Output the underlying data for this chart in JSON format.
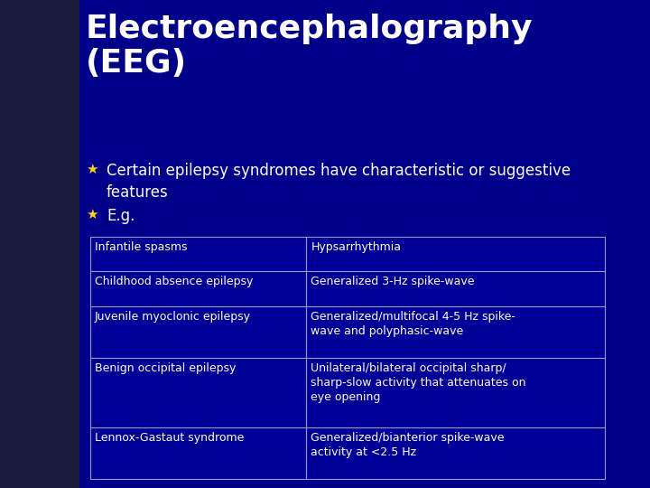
{
  "title_line1": "Electroencephalography",
  "title_line2": "(EEG)",
  "bullet1": "Certain epilepsy syndromes have characteristic or suggestive\nfeatures",
  "bullet2": "E.g.",
  "bullet_color": "#FFD700",
  "bg_color": "#00008B",
  "text_color": "#FFFFFF",
  "table_border_color": "#9999BB",
  "table_bg_color": "#000099",
  "left_strip_color": "#3333AA",
  "table_data": [
    [
      "Infantile spasms",
      "Hypsarrhythmia"
    ],
    [
      "Childhood absence epilepsy",
      "Generalized 3-Hz spike-wave"
    ],
    [
      "Juvenile myoclonic epilepsy",
      "Generalized/multifocal 4-5 Hz spike-\nwave and polyphasic-wave"
    ],
    [
      "Benign occipital epilepsy",
      "Unilateral/bilateral occipital sharp/\nsharp-slow activity that attenuates on\neye opening"
    ],
    [
      "Lennox-Gastaut syndrome",
      "Generalized/bianterior spike-wave\nactivity at <2.5 Hz"
    ]
  ],
  "title_fontsize": 26,
  "bullet_fontsize": 12,
  "table_fontsize": 9,
  "fig_width": 7.2,
  "fig_height": 5.4,
  "dpi": 100
}
